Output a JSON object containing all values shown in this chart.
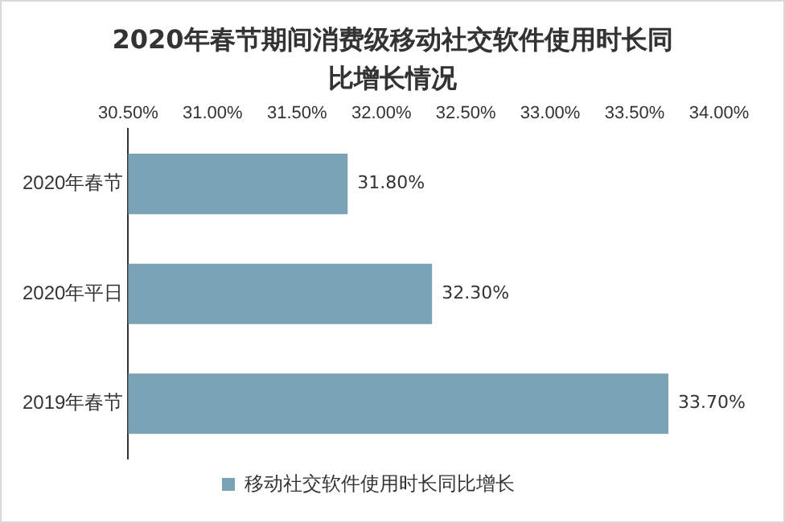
{
  "chart_data": {
    "type": "bar",
    "orientation": "horizontal",
    "title": "2020年春节期间消费级移动社交软件使用时长同比增长情况",
    "categories": [
      "2020年春节",
      "2020年平日",
      "2019年春节"
    ],
    "series": [
      {
        "name": "移动社交软件使用时长同比增长",
        "color": "#7aa3b6",
        "values": [
          31.8,
          32.3,
          33.7
        ],
        "value_labels": [
          "31.80%",
          "32.30%",
          "33.70%"
        ]
      }
    ],
    "xlim": [
      30.5,
      34
    ],
    "xticks": [
      {
        "value": 30.5,
        "label": "30.50%"
      },
      {
        "value": 31,
        "label": "31.00%"
      },
      {
        "value": 31.5,
        "label": "31.50%"
      },
      {
        "value": 32,
        "label": "32.00%"
      },
      {
        "value": 32.5,
        "label": "32.50%"
      },
      {
        "value": 33,
        "label": "33.00%"
      },
      {
        "value": 33.5,
        "label": "33.50%"
      },
      {
        "value": 34,
        "label": "34.00%"
      }
    ],
    "grid": false,
    "legend": "bottom"
  }
}
